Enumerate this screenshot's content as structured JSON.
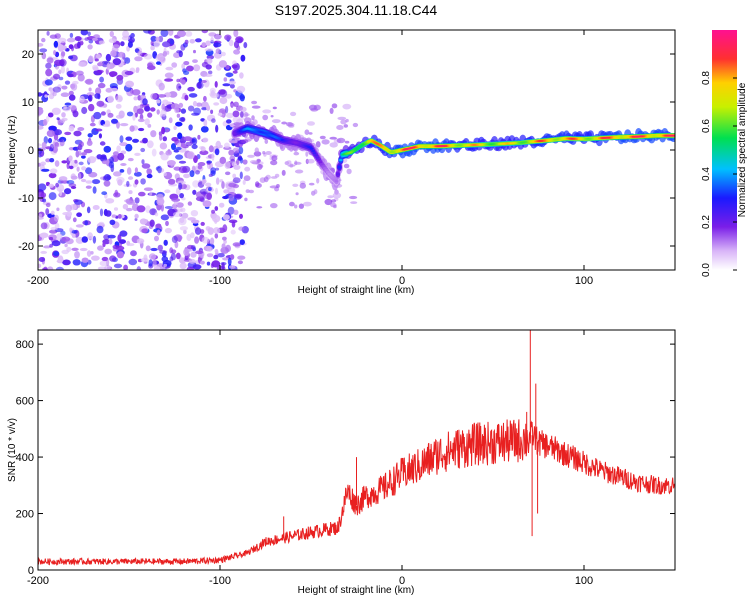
{
  "chart_data": [
    {
      "type": "heatmap",
      "title": "S197.2025.304.11.18.C44",
      "xlabel": "Height of straight line (km)",
      "ylabel": "Frequency (Hz)",
      "xlim": [
        -200,
        150
      ],
      "ylim": [
        -25,
        25
      ],
      "xticks": [
        -200,
        -100,
        0,
        100
      ],
      "yticks": [
        -20,
        -10,
        0,
        10,
        20
      ],
      "colorbar": {
        "label": "Normalized spectral amplitude",
        "ticks": [
          "0.0",
          "0.2",
          "0.4",
          "0.6",
          "0.8"
        ],
        "range": [
          0,
          1
        ]
      },
      "ridge": {
        "name": "dominant frequency",
        "x": [
          -92,
          -85,
          -75,
          -65,
          -58,
          -50,
          -44,
          -40,
          -36,
          -33,
          -28,
          -22,
          -17,
          -12,
          -6,
          0,
          10,
          20,
          35,
          50,
          65,
          70,
          80,
          90,
          100,
          110,
          120,
          130,
          140,
          150
        ],
        "y": [
          3.5,
          4.5,
          3.5,
          2.0,
          1.5,
          0.5,
          -3.0,
          -5.0,
          -6.5,
          -1.0,
          -0.5,
          1.0,
          2.0,
          1.0,
          -0.5,
          0.0,
          0.8,
          0.8,
          1.0,
          1.2,
          1.5,
          1.7,
          2.0,
          2.4,
          2.3,
          2.5,
          2.7,
          2.8,
          3.0,
          3.0
        ],
        "amp": [
          0.25,
          0.4,
          0.45,
          0.3,
          0.25,
          0.3,
          0.2,
          0.15,
          0.15,
          0.5,
          0.7,
          0.75,
          0.85,
          0.85,
          0.9,
          0.95,
          0.95,
          0.95,
          0.85,
          0.8,
          0.8,
          0.85,
          0.9,
          0.9,
          0.85,
          0.9,
          0.95,
          0.95,
          0.95,
          0.95
        ]
      },
      "noise_region": {
        "x_range": [
          -200,
          -92
        ],
        "description": "broadband noise"
      }
    },
    {
      "type": "line",
      "xlabel": "Height of straight line (km)",
      "ylabel": "SNR (10 * v/v)",
      "xlim": [
        -200,
        150
      ],
      "ylim": [
        0,
        850
      ],
      "xticks": [
        -200,
        -100,
        0,
        100
      ],
      "yticks": [
        0,
        200,
        400,
        600,
        800
      ],
      "color": "#e82020",
      "series": [
        {
          "name": "SNR envelope",
          "x": [
            -200,
            -120,
            -100,
            -85,
            -75,
            -60,
            -45,
            -35,
            -30,
            -25,
            -20,
            -10,
            0,
            10,
            20,
            30,
            40,
            50,
            60,
            65,
            70,
            72,
            75,
            80,
            90,
            100,
            110,
            120,
            130,
            140,
            150
          ],
          "y": [
            30,
            30,
            35,
            60,
            100,
            120,
            140,
            150,
            280,
            230,
            260,
            290,
            340,
            370,
            410,
            430,
            445,
            450,
            455,
            460,
            470,
            480,
            450,
            440,
            410,
            380,
            350,
            330,
            310,
            300,
            300
          ]
        }
      ],
      "spikes": [
        {
          "x": 70.5,
          "y": 850
        },
        {
          "x": 71.5,
          "y": 120
        },
        {
          "x": 73.5,
          "y": 660
        },
        {
          "x": 74.5,
          "y": 200
        },
        {
          "x": 68.5,
          "y": 560
        },
        {
          "x": -25,
          "y": 400
        },
        {
          "x": -65,
          "y": 190
        }
      ]
    }
  ]
}
